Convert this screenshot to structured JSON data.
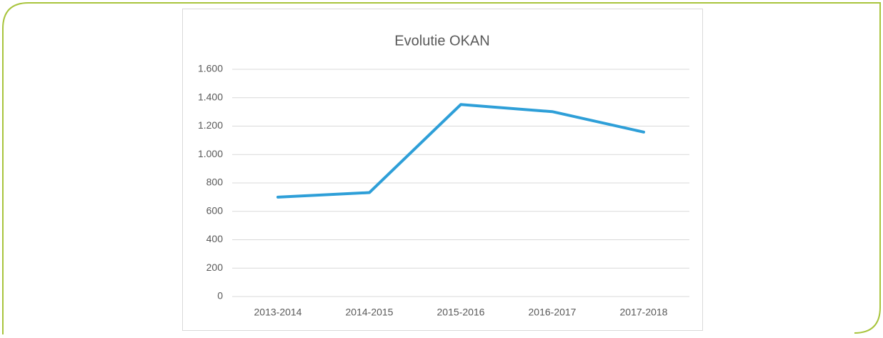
{
  "chart_data": {
    "type": "line",
    "title": "Evolutie OKAN",
    "categories": [
      "2013-2014",
      "2014-2015",
      "2015-2016",
      "2016-2017",
      "2017-2018"
    ],
    "series": [
      {
        "name": "OKAN",
        "color": "#2e9fd8",
        "values": [
          700,
          732,
          1352,
          1302,
          1158
        ]
      }
    ],
    "ylim": [
      0,
      1600
    ],
    "yticks": [
      0,
      200,
      400,
      600,
      800,
      {
        "value": 1000,
        "label": "1.000"
      },
      {
        "value": 1200,
        "label": "1.200"
      },
      {
        "value": 1400,
        "label": "1.400"
      },
      {
        "value": 1600,
        "label": "1.600"
      }
    ],
    "grid": true,
    "legend": false
  }
}
